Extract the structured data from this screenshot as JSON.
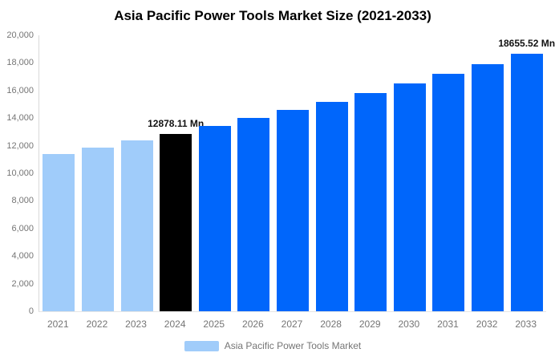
{
  "title": "Asia Pacific Power Tools Market Size (2021-2033)",
  "colors": {
    "historical_bar": "#A0CCFA",
    "highlight_bar": "#000000",
    "forecast_bar": "#0066FB",
    "axis_text": "#757575",
    "data_label_text": "#111111",
    "y_axis_line": "#D9D9D9",
    "x_axis_line": "#E6E6E6",
    "background": "#FFFFFF"
  },
  "chart_data": {
    "type": "bar",
    "title": "Asia Pacific Power Tools Market Size (2021-2033)",
    "xlabel": "",
    "ylabel": "",
    "categories": [
      "2021",
      "2022",
      "2023",
      "2024",
      "2025",
      "2026",
      "2027",
      "2028",
      "2029",
      "2030",
      "2031",
      "2032",
      "2033"
    ],
    "series": [
      {
        "name": "Asia Pacific Power Tools Market",
        "values": [
          11380,
          11860,
          12360,
          12878.11,
          13420,
          13985,
          14575,
          15190,
          15825,
          16490,
          17185,
          17910,
          18655.52
        ]
      }
    ],
    "unit": "Mn",
    "bar_roles": [
      "historical",
      "historical",
      "historical",
      "highlight",
      "forecast",
      "forecast",
      "forecast",
      "forecast",
      "forecast",
      "forecast",
      "forecast",
      "forecast",
      "forecast"
    ],
    "point_labels": [
      {
        "category": "2024",
        "text": "12878.11 Mn"
      },
      {
        "category": "2033",
        "text": "18655.52 Mn"
      }
    ],
    "ylim": [
      0,
      20000
    ],
    "ytick_labels": [
      "0",
      "2,000",
      "4,000",
      "6,000",
      "8,000",
      "10,000",
      "12,000",
      "14,000",
      "16,000",
      "18,000",
      "20,000"
    ],
    "grid": false,
    "legend_position": "bottom",
    "legend": [
      {
        "label": "Asia Pacific Power Tools Market",
        "swatch_color": "#A0CCFA"
      }
    ]
  }
}
